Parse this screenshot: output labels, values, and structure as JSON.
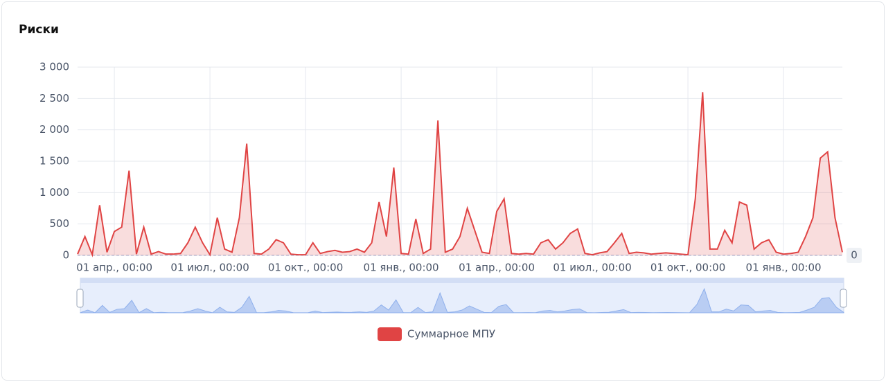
{
  "chart_data": {
    "type": "area",
    "title": "Риски",
    "categories": [
      null,
      null,
      null,
      null,
      null,
      "01 апр., 00:00",
      null,
      null,
      null,
      null,
      null,
      null,
      null,
      null,
      null,
      null,
      null,
      null,
      "01 июл., 00:00",
      null,
      null,
      null,
      null,
      null,
      null,
      null,
      null,
      null,
      null,
      null,
      null,
      "01 окт., 00:00",
      null,
      null,
      null,
      null,
      null,
      null,
      null,
      null,
      null,
      null,
      null,
      null,
      "01 янв., 00:00",
      null,
      null,
      null,
      null,
      null,
      null,
      null,
      null,
      null,
      null,
      null,
      null,
      "01 апр., 00:00",
      null,
      null,
      null,
      null,
      null,
      null,
      null,
      null,
      null,
      null,
      null,
      null,
      "01 июл., 00:00",
      null,
      null,
      null,
      null,
      null,
      null,
      null,
      null,
      null,
      null,
      null,
      null,
      "01 окт., 00:00",
      null,
      null,
      null,
      null,
      null,
      null,
      null,
      null,
      null,
      null,
      null,
      null,
      "01 янв., 00:00",
      null,
      null,
      null,
      null,
      null,
      null,
      null,
      null
    ],
    "series": [
      {
        "name": "Суммарное МПУ",
        "color": "#e04444",
        "values": [
          20,
          300,
          10,
          800,
          50,
          380,
          450,
          1350,
          20,
          450,
          20,
          60,
          20,
          20,
          30,
          200,
          450,
          200,
          10,
          600,
          100,
          50,
          600,
          1780,
          30,
          20,
          100,
          250,
          200,
          20,
          10,
          10,
          200,
          30,
          60,
          80,
          50,
          60,
          100,
          50,
          200,
          850,
          300,
          1400,
          30,
          20,
          580,
          30,
          100,
          2150,
          50,
          100,
          300,
          750,
          400,
          50,
          30,
          700,
          900,
          30,
          20,
          30,
          20,
          200,
          250,
          100,
          200,
          350,
          420,
          30,
          10,
          40,
          60,
          200,
          350,
          30,
          50,
          40,
          20,
          30,
          40,
          30,
          20,
          10,
          900,
          2600,
          100,
          100,
          400,
          200,
          850,
          800,
          100,
          200,
          250,
          50,
          20,
          30,
          50,
          300,
          600,
          1550,
          1650,
          600,
          50
        ]
      }
    ],
    "ylim": [
      0,
      3000
    ],
    "yticks": [
      0,
      {
        "value": 500,
        "label": "500"
      },
      {
        "value": 1000,
        "label": "1 000"
      },
      {
        "value": 1500,
        "label": "1 500"
      },
      {
        "value": 2000,
        "label": "2 000"
      },
      {
        "value": 2500,
        "label": "2 500"
      },
      {
        "value": 3000,
        "label": "3 000"
      }
    ],
    "reference_line": 0,
    "grid": true
  }
}
